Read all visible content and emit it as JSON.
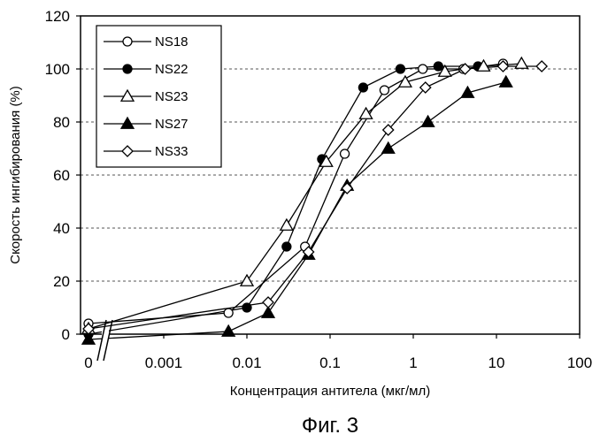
{
  "chart_data": {
    "type": "line",
    "xlabel": "Концентрация антитела (мкг/мл)",
    "ylabel": "Скорость ингибирования (%)",
    "caption": "Фиг. 3",
    "xscale": "log",
    "xlim": [
      0.0001,
      100
    ],
    "ylim": [
      0,
      120
    ],
    "x_ticks": [
      "0",
      "0.001",
      "0.01",
      "0.1",
      "1",
      "10",
      "100"
    ],
    "y_ticks": [
      "0",
      "20",
      "40",
      "60",
      "80",
      "100",
      "120"
    ],
    "axis_break": true,
    "grid": "horizontal-dashed",
    "legend_position": "top-left",
    "series": [
      {
        "name": "NS18",
        "marker": "circle-open",
        "x": [
          0,
          0.006,
          0.05,
          0.15,
          0.45,
          1.3,
          4,
          12
        ],
        "y": [
          4,
          8,
          33,
          68,
          92,
          100,
          100,
          102
        ]
      },
      {
        "name": "NS22",
        "marker": "circle-filled",
        "x": [
          0,
          0.01,
          0.03,
          0.08,
          0.25,
          0.7,
          2,
          6
        ],
        "y": [
          0,
          10,
          33,
          66,
          93,
          100,
          101,
          101
        ]
      },
      {
        "name": "NS23",
        "marker": "triangle-open",
        "x": [
          0,
          0.01,
          0.03,
          0.09,
          0.27,
          0.8,
          2.4,
          7,
          20
        ],
        "y": [
          2,
          20,
          41,
          65,
          83,
          95,
          99,
          101,
          102
        ]
      },
      {
        "name": "NS27",
        "marker": "triangle-filled",
        "x": [
          0,
          0.006,
          0.018,
          0.055,
          0.16,
          0.5,
          1.5,
          4.5,
          13
        ],
        "y": [
          -2,
          1,
          8,
          30,
          56,
          70,
          80,
          91,
          95
        ]
      },
      {
        "name": "NS33",
        "marker": "diamond-open",
        "x": [
          0,
          0.018,
          0.055,
          0.16,
          0.5,
          1.4,
          4.2,
          12,
          35
        ],
        "y": [
          2,
          12,
          31,
          55,
          77,
          93,
          100,
          101,
          101
        ]
      }
    ]
  }
}
